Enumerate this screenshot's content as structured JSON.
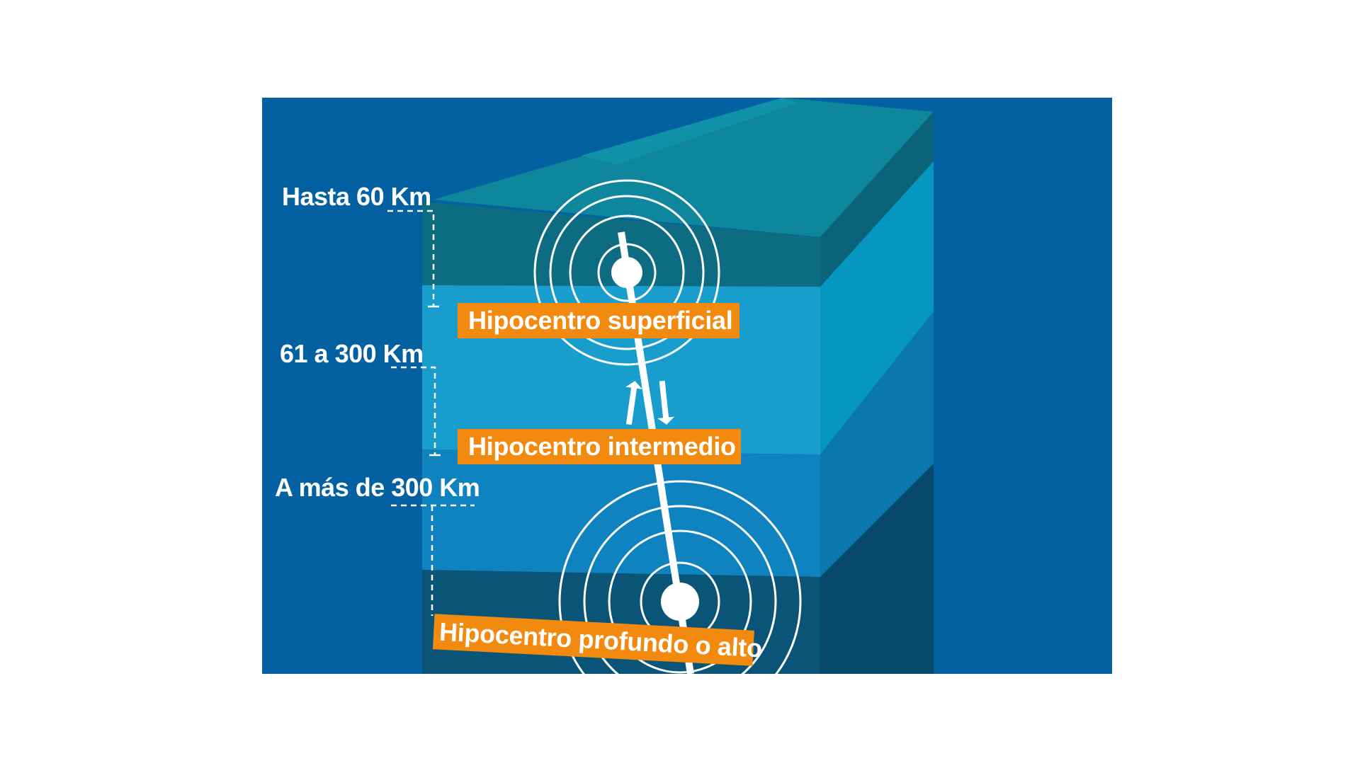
{
  "colors": {
    "background": "#0361a2",
    "label_box": "#f28a0f",
    "text": "#ffffff",
    "layer_shallow": "#0d6c81",
    "layer_intermediate": "#199dcd",
    "layer_intermediate_lower": "#0f83bf",
    "layer_deep": "#0a5478"
  },
  "depth_labels": {
    "shallow": "Hasta 60 Km",
    "intermediate": "61 a 300 Km",
    "deep": "A más de 300 Km"
  },
  "hypocenter_labels": {
    "shallow": "Hipocentro superficial",
    "intermediate": "Hipocentro intermedio",
    "deep": "Hipocentro profundo o alto"
  }
}
